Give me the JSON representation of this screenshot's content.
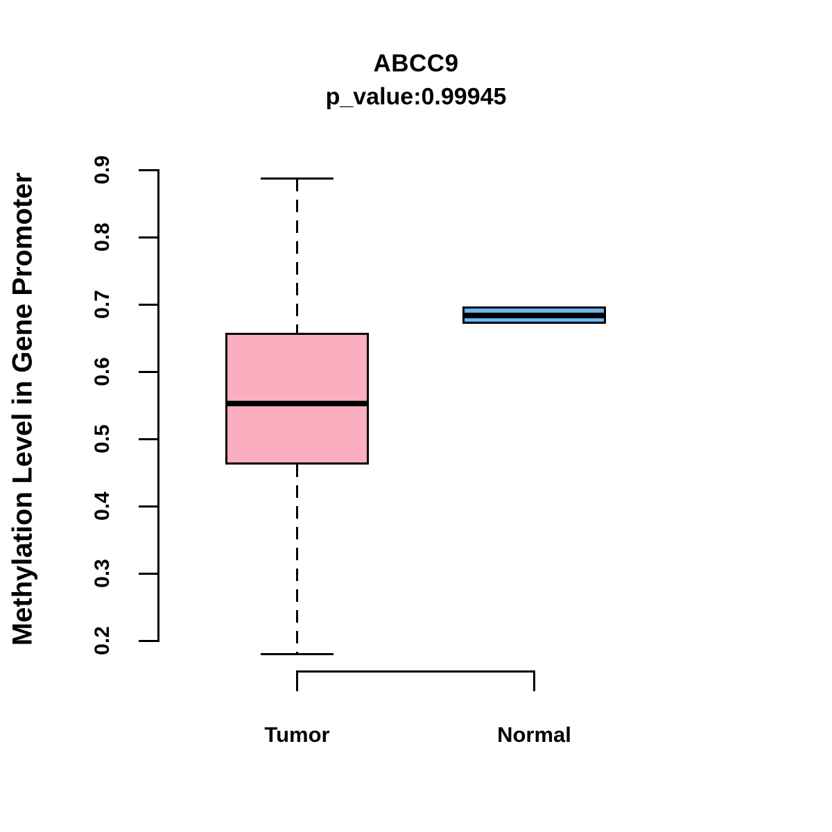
{
  "chart_data": {
    "type": "boxplot",
    "title": "ABCC9",
    "subtitle": "p_value:0.99945",
    "ylabel": "Methylation Level in Gene Promoter",
    "xlabel": "",
    "ylim": [
      0.2,
      0.9
    ],
    "yticks": [
      0.2,
      0.3,
      0.4,
      0.5,
      0.6,
      0.7,
      0.8,
      0.9
    ],
    "grid": false,
    "legend": "none",
    "categories": [
      "Tumor",
      "Normal"
    ],
    "series": [
      {
        "name": "Tumor",
        "fill_color": "#FCAEC1",
        "whisker_low": 0.18,
        "q1": 0.462,
        "median": 0.553,
        "q3": 0.658,
        "whisker_high": 0.887
      },
      {
        "name": "Normal",
        "fill_color": "#6CB5EE",
        "whisker_low": 0.671,
        "q1": 0.671,
        "median": 0.684,
        "q3": 0.697,
        "whisker_high": 0.697
      }
    ],
    "colors": {
      "box_border": "#000000",
      "median_line": "#000000",
      "axis": "#000000",
      "text": "#000000",
      "background": "#FFFFFF"
    }
  }
}
